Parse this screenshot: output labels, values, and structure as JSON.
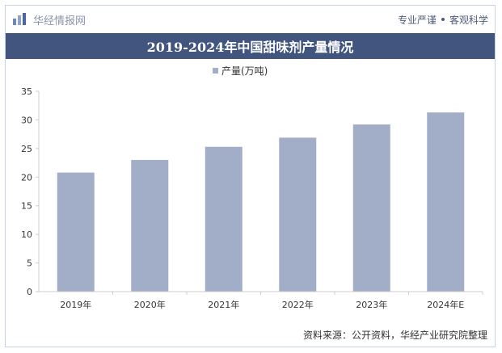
{
  "header": {
    "brand": "华经情报网",
    "slogan_left": "专业严谨",
    "slogan_right": "客观科学"
  },
  "source": "资料来源：公开资料，华经产业研究院整理",
  "colors": {
    "bar": "#a2aec8",
    "title_bg": "#41557f",
    "axis": "#cccccc"
  },
  "chart_data": {
    "type": "bar",
    "title": "2019-2024年中国甜味剂产量情况",
    "categories": [
      "2019年",
      "2020年",
      "2021年",
      "2022年",
      "2023年",
      "2024年E"
    ],
    "series": [
      {
        "name": "产量(万吨)",
        "values": [
          20.8,
          23.0,
          25.3,
          26.9,
          29.2,
          31.3
        ]
      }
    ],
    "ylim": [
      0,
      35
    ],
    "yticks": [
      0,
      5,
      10,
      15,
      20,
      25,
      30,
      35
    ],
    "grid": false,
    "legend_position": "top-center"
  }
}
